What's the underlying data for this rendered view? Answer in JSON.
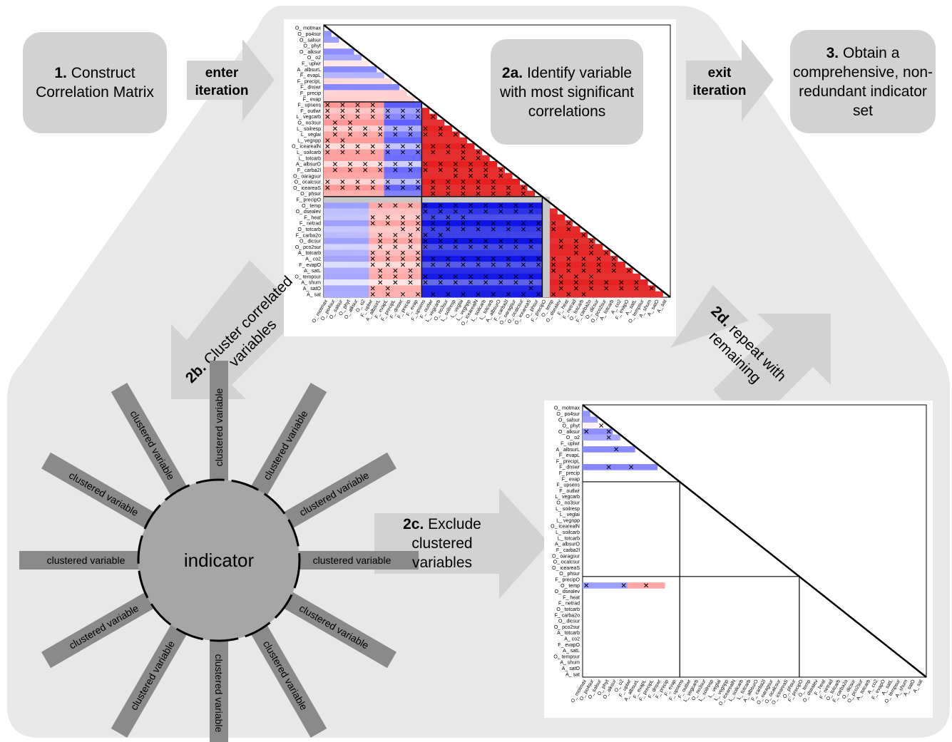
{
  "steps": {
    "s1": {
      "num": "1.",
      "text": "Construct Correlation Matrix"
    },
    "s2a": {
      "num": "2a.",
      "text": "Identify variable with most significant correlations"
    },
    "s2b": {
      "num": "2b.",
      "text": "Cluster correlated variables"
    },
    "s2c": {
      "num": "2c.",
      "text": "Exclude clustered variables"
    },
    "s2d": {
      "num": "2d.",
      "text": "repeat with remaining"
    },
    "s3": {
      "num": "3.",
      "text": "Obtain a comprehensive, non-redundant indicator set"
    }
  },
  "arrows": {
    "enter": "enter iteration",
    "exit": "exit iteration"
  },
  "star": {
    "center_label": "indicator",
    "spoke_label": "clustered variable",
    "spoke_count": 12
  },
  "variables": [
    "O_ motmax",
    "O_ po4sur",
    "O_ salsur",
    "O_ phyt",
    "O_ alksur",
    "O_ o2",
    "F_ uplwr",
    "A_ albsurL",
    "F_ evapL",
    "F_ precipL",
    "F_ dnswr",
    "F_ precip",
    "F_ evap",
    "F_ upsens",
    "F_ outlwr",
    "L_ vegcarb",
    "O_ no3sur",
    "L_ soilresp",
    "L_ veglai",
    "L_ vegnpp",
    "O_ icearealN",
    "L_ soilcarb",
    "L_ totcarb",
    "A_ albsurO",
    "F_ carba2l",
    "O_ oaragsur",
    "O_ ocalcsur",
    "O_ iceareaS",
    "O_ phsur",
    "F_ precipO",
    "O_ temp",
    "O_ dsealev",
    "F_ heat",
    "F_ netrad",
    "O_ totcarb",
    "F_ carba2o",
    "O_ dicsur",
    "O_ pco2sur",
    "A_ totcarb",
    "A_ co2",
    "F_ evapO",
    "A_ satL",
    "O_ tempsur",
    "A_ shum",
    "A_ satO",
    "A_ sat"
  ],
  "colors": {
    "background_shape": "#e8e8e8",
    "box_fill": "#d2d2d2",
    "arrow_fill": "#d2d2d2",
    "spoke_fill": "#8a8a8a",
    "hub_fill": "#a6a6a6",
    "positive": "#e31a1c",
    "negative": "#0a14e0"
  }
}
